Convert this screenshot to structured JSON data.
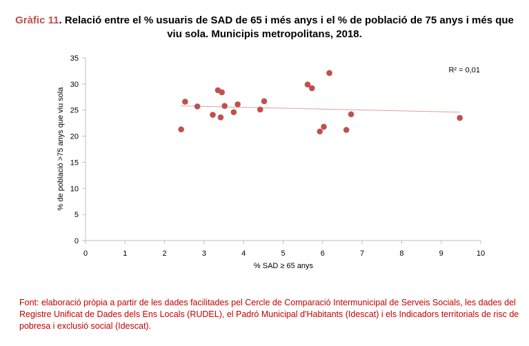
{
  "title_label": "Gràfic 11",
  "title_text": ". Relació entre el % usuaris de SAD de 65 i més anys i el % de població de 75 anys i més que viu sola. Municipis metropolitans, 2018.",
  "source": "Font: elaboració pròpia a partir de les dades facilitades pel Cercle de Comparació Intermunicipal de Serveis Socials, les dades del Registre Unificat de Dades dels Ens Locals (RUDEL), el Padró Municipal d'Habitants (Idescat) i els Indicadors territorials de risc de pobresa i exclusió social (Idescat).",
  "colors": {
    "point": "#c0504d",
    "trend": "#c0504d",
    "axis": "#bfbfbf",
    "grid": "#d9d9d9",
    "title_label": "#c0504d",
    "source": "#c00000"
  },
  "chart_data": {
    "type": "scatter",
    "xlabel": "% SAD ≥ 65 anys",
    "ylabel": "% de població >75 anys que viu sola",
    "xlim": [
      0,
      10
    ],
    "ylim": [
      0,
      35
    ],
    "xticks": [
      0,
      1,
      2,
      3,
      4,
      5,
      6,
      7,
      8,
      9,
      10
    ],
    "yticks": [
      0,
      5,
      10,
      15,
      20,
      25,
      30,
      35
    ],
    "grid": false,
    "annotation": "R² = 0,01",
    "points": [
      {
        "x": 2.42,
        "y": 21.3
      },
      {
        "x": 2.52,
        "y": 26.6
      },
      {
        "x": 2.83,
        "y": 25.7
      },
      {
        "x": 3.22,
        "y": 24.1
      },
      {
        "x": 3.35,
        "y": 28.8
      },
      {
        "x": 3.42,
        "y": 23.6
      },
      {
        "x": 3.45,
        "y": 28.4
      },
      {
        "x": 3.52,
        "y": 25.8
      },
      {
        "x": 3.75,
        "y": 24.6
      },
      {
        "x": 3.85,
        "y": 26.1
      },
      {
        "x": 4.42,
        "y": 25.1
      },
      {
        "x": 4.52,
        "y": 26.7
      },
      {
        "x": 5.62,
        "y": 29.9
      },
      {
        "x": 5.73,
        "y": 29.2
      },
      {
        "x": 5.93,
        "y": 20.9
      },
      {
        "x": 6.03,
        "y": 21.8
      },
      {
        "x": 6.17,
        "y": 32.1
      },
      {
        "x": 6.6,
        "y": 21.2
      },
      {
        "x": 6.72,
        "y": 24.2
      },
      {
        "x": 9.47,
        "y": 23.5
      }
    ],
    "trendline": {
      "x": [
        2.42,
        9.47
      ],
      "y": [
        25.8,
        24.6
      ]
    }
  }
}
